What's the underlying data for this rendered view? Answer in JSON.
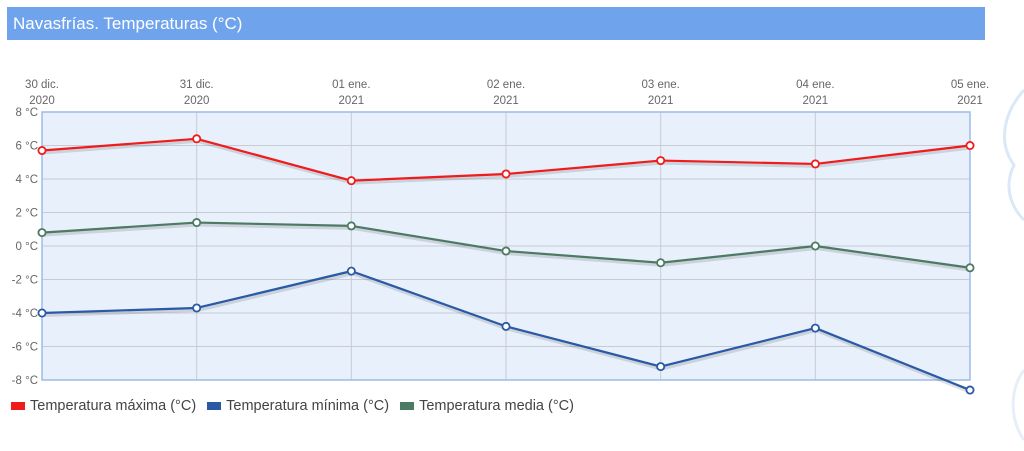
{
  "header": {
    "title": "Navasfrías. Temperaturas (°C)"
  },
  "colors": {
    "header_bg": "#6fa3ec",
    "plot_bg": "#e8f0fb",
    "plot_border": "#9dbbe8",
    "grid": "#c7ccd3",
    "max": "#f01b1b",
    "min": "#2a59a5",
    "media": "#4c7a63"
  },
  "chart_data": {
    "type": "line",
    "title": "Navasfrías. Temperaturas (°C)",
    "categories": [
      [
        "30 dic.",
        "2020"
      ],
      [
        "31 dic.",
        "2020"
      ],
      [
        "01 ene.",
        "2021"
      ],
      [
        "02 ene.",
        "2021"
      ],
      [
        "03 ene.",
        "2021"
      ],
      [
        "04 ene.",
        "2021"
      ],
      [
        "05 ene.",
        "2021"
      ]
    ],
    "ylim": [
      -8,
      8
    ],
    "yticks": [
      8,
      6,
      4,
      2,
      0,
      -2,
      -4,
      -6,
      -8
    ],
    "yunit": " °C",
    "grid": true,
    "legend_position": "bottom-left",
    "series": [
      {
        "name": "Temperatura máxima (°C)",
        "color": "#f01b1b",
        "values": [
          5.7,
          6.4,
          3.9,
          4.3,
          5.1,
          4.9,
          6.0
        ]
      },
      {
        "name": "Temperatura mínima (°C)",
        "color": "#2a59a5",
        "values": [
          -4.0,
          -3.7,
          -1.5,
          -4.8,
          -7.2,
          -4.9,
          -8.6
        ]
      },
      {
        "name": "Temperatura media (°C)",
        "color": "#4c7a63",
        "values": [
          0.8,
          1.4,
          1.2,
          -0.3,
          -1.0,
          0.0,
          -1.3
        ]
      }
    ]
  }
}
